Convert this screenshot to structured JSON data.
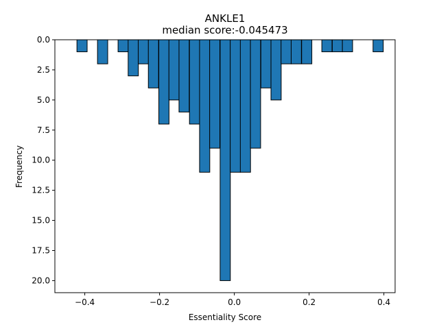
{
  "chart_data": {
    "type": "bar",
    "title": "ANKLE1",
    "subtitle": "median score:-0.045473",
    "xlabel": "Essentiality Score",
    "ylabel": "Frequency",
    "xlim": [
      -0.48,
      0.43
    ],
    "ylim": [
      21,
      0
    ],
    "y_inverted": true,
    "grid": false,
    "bar_color": "#1f77b4",
    "edge_color": "#000000",
    "bin_width": 0.0273,
    "x_ticks": [
      {
        "value": -0.4,
        "label": "−0.4"
      },
      {
        "value": -0.2,
        "label": "−0.2"
      },
      {
        "value": 0.0,
        "label": "0.0"
      },
      {
        "value": 0.2,
        "label": "0.2"
      },
      {
        "value": 0.4,
        "label": "0.4"
      }
    ],
    "y_ticks": [
      {
        "value": 0.0,
        "label": "0.0"
      },
      {
        "value": 2.5,
        "label": "2.5"
      },
      {
        "value": 5.0,
        "label": "5.0"
      },
      {
        "value": 7.5,
        "label": "7.5"
      },
      {
        "value": 10.0,
        "label": "10.0"
      },
      {
        "value": 12.5,
        "label": "12.5"
      },
      {
        "value": 15.0,
        "label": "15.0"
      },
      {
        "value": 17.5,
        "label": "17.5"
      },
      {
        "value": 20.0,
        "label": "20.0"
      }
    ],
    "bins": [
      {
        "x": -0.421,
        "count": 1
      },
      {
        "x": -0.366,
        "count": 2
      },
      {
        "x": -0.311,
        "count": 1
      },
      {
        "x": -0.284,
        "count": 3
      },
      {
        "x": -0.257,
        "count": 2
      },
      {
        "x": -0.23,
        "count": 4
      },
      {
        "x": -0.202,
        "count": 7
      },
      {
        "x": -0.175,
        "count": 5
      },
      {
        "x": -0.148,
        "count": 6
      },
      {
        "x": -0.12,
        "count": 7
      },
      {
        "x": -0.093,
        "count": 11
      },
      {
        "x": -0.066,
        "count": 9
      },
      {
        "x": -0.038,
        "count": 20
      },
      {
        "x": -0.011,
        "count": 11
      },
      {
        "x": 0.016,
        "count": 11
      },
      {
        "x": 0.043,
        "count": 9
      },
      {
        "x": 0.071,
        "count": 4
      },
      {
        "x": 0.098,
        "count": 5
      },
      {
        "x": 0.125,
        "count": 2
      },
      {
        "x": 0.152,
        "count": 2
      },
      {
        "x": 0.18,
        "count": 2
      },
      {
        "x": 0.234,
        "count": 1
      },
      {
        "x": 0.262,
        "count": 1
      },
      {
        "x": 0.289,
        "count": 1
      },
      {
        "x": 0.371,
        "count": 1
      }
    ]
  }
}
